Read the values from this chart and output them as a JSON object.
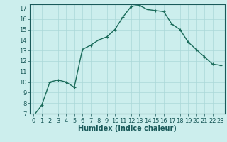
{
  "x": [
    0,
    1,
    2,
    3,
    4,
    5,
    6,
    7,
    8,
    9,
    10,
    11,
    12,
    13,
    14,
    15,
    16,
    17,
    18,
    19,
    20,
    21,
    22,
    23
  ],
  "y": [
    6.8,
    7.8,
    10.0,
    10.2,
    10.0,
    9.5,
    13.1,
    13.5,
    14.0,
    14.3,
    15.0,
    16.2,
    17.2,
    17.3,
    16.9,
    16.8,
    16.7,
    15.5,
    15.0,
    13.8,
    13.1,
    12.4,
    11.7,
    11.6
  ],
  "xlabel": "Humidex (Indice chaleur)",
  "line_color": "#1a6b5a",
  "marker": "+",
  "marker_size": 3,
  "background_color": "#cceeed",
  "grid_major_color": "#aad8d8",
  "grid_minor_color": "#c0e8e8",
  "tick_color": "#1a5a5a",
  "ylim": [
    7,
    17.4
  ],
  "xlim": [
    -0.5,
    23.5
  ],
  "yticks": [
    7,
    8,
    9,
    10,
    11,
    12,
    13,
    14,
    15,
    16,
    17
  ],
  "xticks": [
    0,
    1,
    2,
    3,
    4,
    5,
    6,
    7,
    8,
    9,
    10,
    11,
    12,
    13,
    14,
    15,
    16,
    17,
    18,
    19,
    20,
    21,
    22,
    23
  ],
  "xlabel_fontsize": 7,
  "tick_fontsize": 6,
  "linewidth": 1.0
}
